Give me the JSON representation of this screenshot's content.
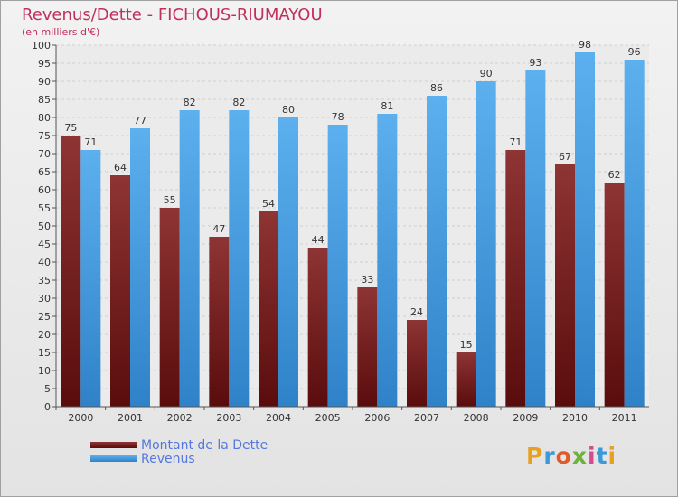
{
  "colors": {
    "dette": "#7b2424",
    "revenus": "#4a9fe0",
    "title": "#c0305a",
    "legend_text": "#5577dd"
  },
  "chart_data": {
    "type": "bar",
    "title": "Revenus/Dette - FICHOUS-RIUMAYOU",
    "subtitle": "(en milliers d'€)",
    "categories": [
      "2000",
      "2001",
      "2002",
      "2003",
      "2004",
      "2005",
      "2006",
      "2007",
      "2008",
      "2009",
      "2010",
      "2011"
    ],
    "series": [
      {
        "name": "Montant de la Dette",
        "values": [
          75,
          64,
          55,
          47,
          54,
          44,
          33,
          24,
          15,
          71,
          67,
          62
        ]
      },
      {
        "name": "Revenus",
        "values": [
          71,
          77,
          82,
          82,
          80,
          78,
          81,
          86,
          90,
          93,
          98,
          96
        ]
      }
    ],
    "ylim": [
      0,
      100
    ],
    "ytick_step": 5,
    "grid": true,
    "legend_position": "bottom-left"
  },
  "logo_text": "Proxiti"
}
